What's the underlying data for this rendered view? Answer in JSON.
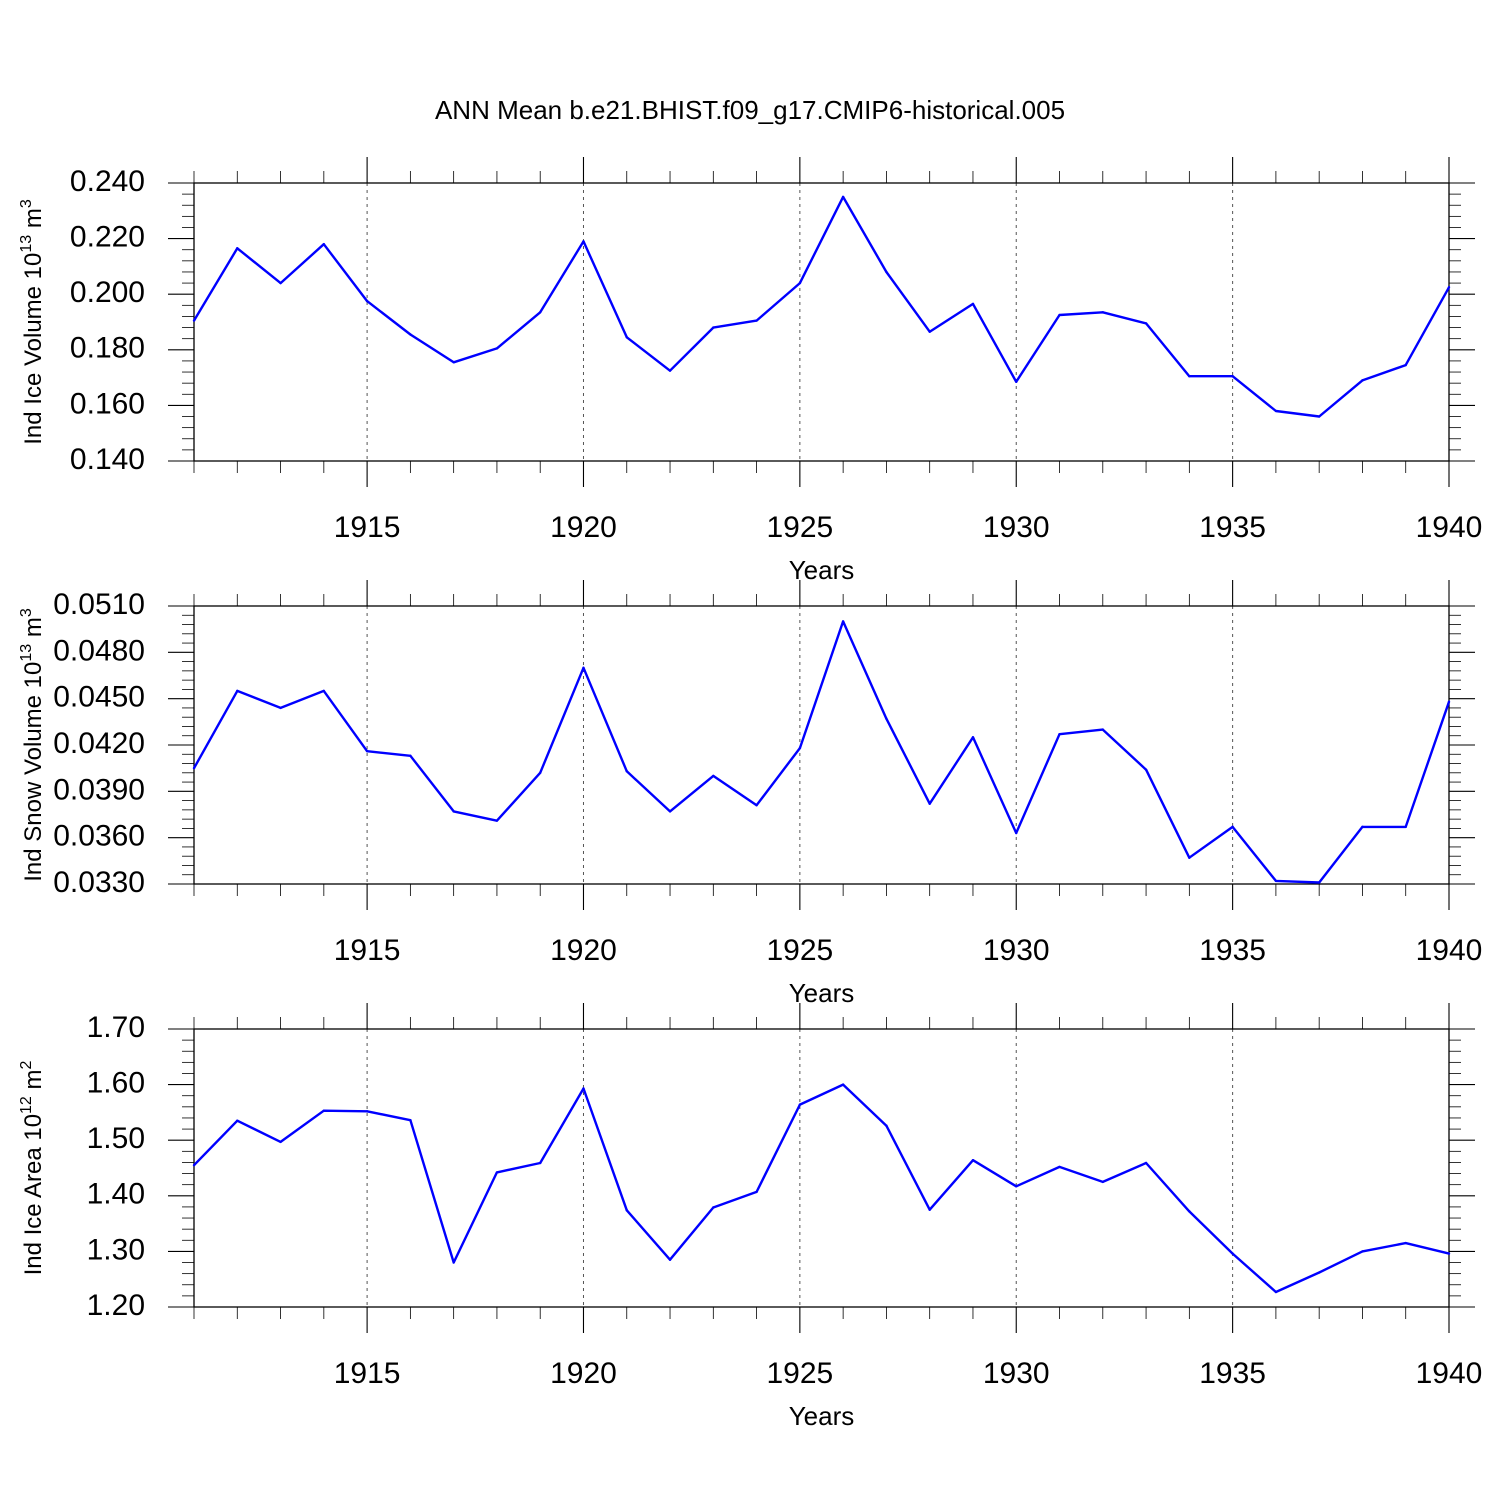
{
  "title": "ANN Mean b.e21.BHIST.f09_g17.CMIP6-historical.005",
  "line_color": "#0000ff",
  "chart_data": [
    {
      "type": "line",
      "xlabel": "Years",
      "ylabel": {
        "main": "Ind Ice Volume 10",
        "sup": "13",
        "unit": " m",
        "unit_sup": "3"
      },
      "x_ticks": [
        "1915",
        "1920",
        "1925",
        "1930",
        "1935",
        "1940"
      ],
      "y_ticks": [
        "0.140",
        "0.160",
        "0.180",
        "0.200",
        "0.220",
        "0.240"
      ],
      "xlim": [
        1911,
        1940
      ],
      "ylim": [
        0.14,
        0.24
      ],
      "grid": "vertical dashed at major x ticks",
      "x": [
        1911,
        1912,
        1913,
        1914,
        1915,
        1916,
        1917,
        1918,
        1919,
        1920,
        1921,
        1922,
        1923,
        1924,
        1925,
        1926,
        1927,
        1928,
        1929,
        1930,
        1931,
        1932,
        1933,
        1934,
        1935,
        1936,
        1937,
        1938,
        1939,
        1940
      ],
      "values": [
        0.1905,
        0.2165,
        0.204,
        0.218,
        0.1975,
        0.1855,
        0.1755,
        0.1805,
        0.1935,
        0.219,
        0.1845,
        0.1725,
        0.188,
        0.1905,
        0.204,
        0.235,
        0.208,
        0.1865,
        0.1965,
        0.1685,
        0.1925,
        0.1935,
        0.1895,
        0.1705,
        0.1705,
        0.158,
        0.156,
        0.169,
        0.1745,
        0.2025
      ]
    },
    {
      "type": "line",
      "xlabel": "Years",
      "ylabel": {
        "main": "Ind Snow Volume 10",
        "sup": "13",
        "unit": " m",
        "unit_sup": "3"
      },
      "x_ticks": [
        "1915",
        "1920",
        "1925",
        "1930",
        "1935",
        "1940"
      ],
      "y_ticks": [
        "0.0330",
        "0.0360",
        "0.0390",
        "0.0420",
        "0.0450",
        "0.0480",
        "0.0510"
      ],
      "xlim": [
        1911,
        1940
      ],
      "ylim": [
        0.033,
        0.051
      ],
      "grid": "vertical dashed at major x ticks",
      "x": [
        1911,
        1912,
        1913,
        1914,
        1915,
        1916,
        1917,
        1918,
        1919,
        1920,
        1921,
        1922,
        1923,
        1924,
        1925,
        1926,
        1927,
        1928,
        1929,
        1930,
        1931,
        1932,
        1933,
        1934,
        1935,
        1936,
        1937,
        1938,
        1939,
        1940
      ],
      "values": [
        0.0405,
        0.0455,
        0.0444,
        0.0455,
        0.0416,
        0.0413,
        0.0377,
        0.0371,
        0.0402,
        0.047,
        0.0403,
        0.0377,
        0.04,
        0.0381,
        0.0418,
        0.05,
        0.0437,
        0.0382,
        0.0425,
        0.0363,
        0.0427,
        0.043,
        0.0404,
        0.0347,
        0.0367,
        0.0332,
        0.0331,
        0.0367,
        0.0367,
        0.0448
      ]
    },
    {
      "type": "line",
      "xlabel": "Years",
      "ylabel": {
        "main": "Ind Ice Area 10",
        "sup": "12",
        "unit": " m",
        "unit_sup": "2"
      },
      "x_ticks": [
        "1915",
        "1920",
        "1925",
        "1930",
        "1935",
        "1940"
      ],
      "y_ticks": [
        "1.20",
        "1.30",
        "1.40",
        "1.50",
        "1.60",
        "1.70"
      ],
      "xlim": [
        1911,
        1940
      ],
      "ylim": [
        1.2,
        1.7
      ],
      "grid": "vertical dashed at major x ticks",
      "x": [
        1911,
        1912,
        1913,
        1914,
        1915,
        1916,
        1917,
        1918,
        1919,
        1920,
        1921,
        1922,
        1923,
        1924,
        1925,
        1926,
        1927,
        1928,
        1929,
        1930,
        1931,
        1932,
        1933,
        1934,
        1935,
        1936,
        1937,
        1938,
        1939,
        1940
      ],
      "values": [
        1.455,
        1.535,
        1.497,
        1.553,
        1.552,
        1.536,
        1.28,
        1.442,
        1.459,
        1.593,
        1.374,
        1.285,
        1.379,
        1.407,
        1.564,
        1.6,
        1.526,
        1.375,
        1.464,
        1.417,
        1.452,
        1.425,
        1.459,
        1.372,
        1.296,
        1.227,
        1.262,
        1.3,
        1.315,
        1.296
      ]
    }
  ]
}
